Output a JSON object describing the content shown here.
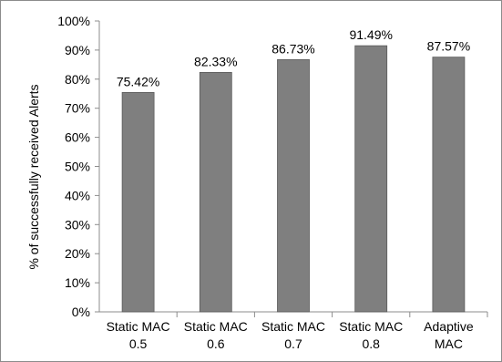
{
  "chart_data": {
    "type": "bar",
    "title": "",
    "xlabel": "",
    "ylabel": "% of successfully received Alerts",
    "categories": [
      [
        "Static MAC",
        "0.5"
      ],
      [
        "Static MAC",
        "0.6"
      ],
      [
        "Static MAC",
        "0.7"
      ],
      [
        "Static MAC",
        "0.8"
      ],
      [
        "Adaptive",
        "MAC"
      ]
    ],
    "values": [
      75.42,
      82.33,
      86.73,
      91.49,
      87.57
    ],
    "data_labels": [
      "75.42%",
      "82.33%",
      "86.73%",
      "91.49%",
      "87.57%"
    ],
    "ylim": [
      0,
      100
    ],
    "yticks": [
      "0%",
      "10%",
      "20%",
      "30%",
      "40%",
      "50%",
      "60%",
      "70%",
      "80%",
      "90%",
      "100%"
    ],
    "grid": false,
    "legend": "none",
    "bar_color": "#7f7f7f",
    "bar_edge_color": "#5a5a5a",
    "axis_color": "#8c8c8c"
  }
}
